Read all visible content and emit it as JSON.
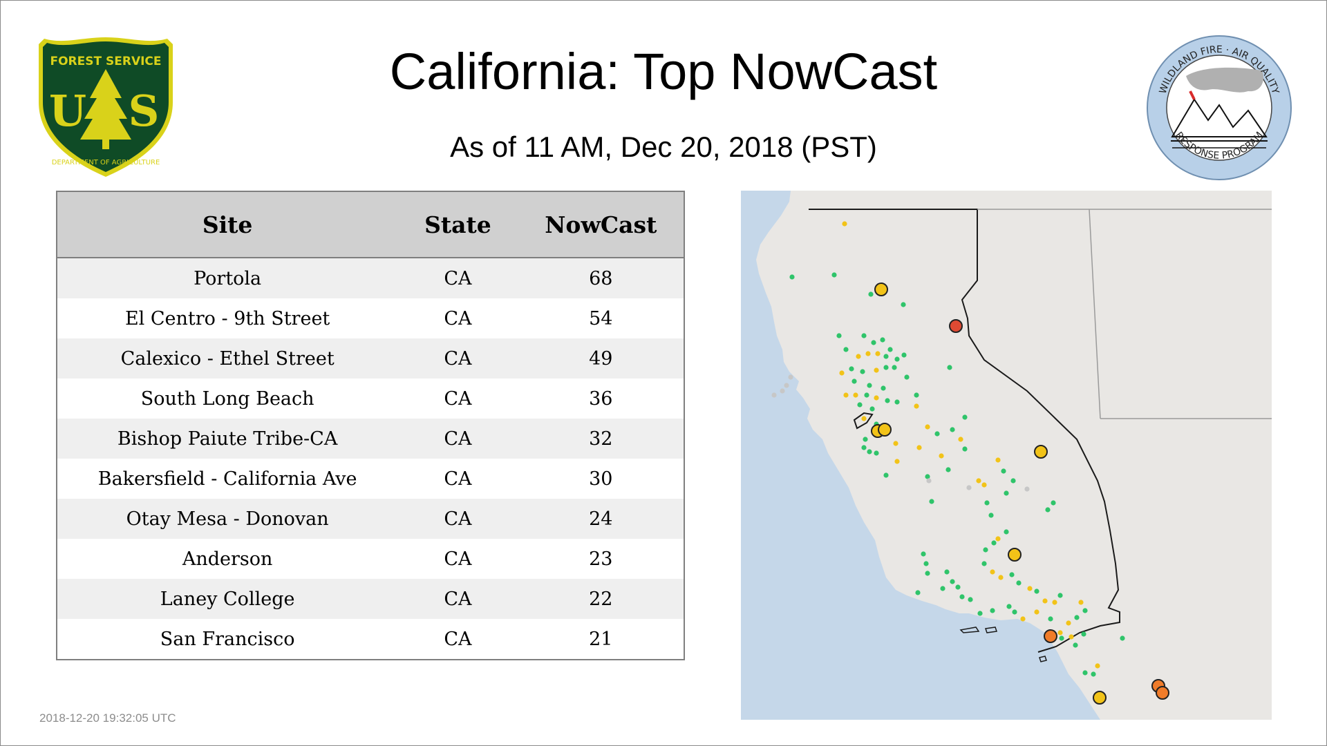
{
  "header": {
    "title": "California: Top NowCast",
    "subtitle": "As of 11 AM, Dec 20, 2018 (PST)"
  },
  "logos": {
    "left": {
      "line1": "FOREST SERVICE",
      "initials": "U S",
      "line2": "DEPARTMENT OF AGRICULTURE"
    },
    "right": {
      "top_text": "WILDLAND FIRE · AIR QUALITY",
      "bottom_text": "RESPONSE PROGRAM"
    }
  },
  "table": {
    "columns": [
      "Site",
      "State",
      "NowCast"
    ],
    "rows": [
      {
        "site": "Portola",
        "state": "CA",
        "nowcast": "68"
      },
      {
        "site": "El Centro - 9th Street",
        "state": "CA",
        "nowcast": "54"
      },
      {
        "site": "Calexico - Ethel Street",
        "state": "CA",
        "nowcast": "49"
      },
      {
        "site": "South Long Beach",
        "state": "CA",
        "nowcast": "36"
      },
      {
        "site": "Bishop Paiute Tribe-CA",
        "state": "CA",
        "nowcast": "32"
      },
      {
        "site": "Bakersfield - California Ave",
        "state": "CA",
        "nowcast": "30"
      },
      {
        "site": "Otay Mesa - Donovan",
        "state": "CA",
        "nowcast": "24"
      },
      {
        "site": "Anderson",
        "state": "CA",
        "nowcast": "23"
      },
      {
        "site": "Laney College",
        "state": "CA",
        "nowcast": "22"
      },
      {
        "site": "San Francisco",
        "state": "CA",
        "nowcast": "21"
      }
    ]
  },
  "map": {
    "colors": {
      "ocean": "#c5d7e9",
      "land": "#e9e7e4",
      "good": "#2fc46a",
      "moderate": "#f2c318",
      "usg": "#f07c2a",
      "unhealthy": "#e04a33",
      "no_data": "#c7c7c7"
    }
  },
  "footer": {
    "timestamp": "2018-12-20 19:32:05 UTC"
  }
}
